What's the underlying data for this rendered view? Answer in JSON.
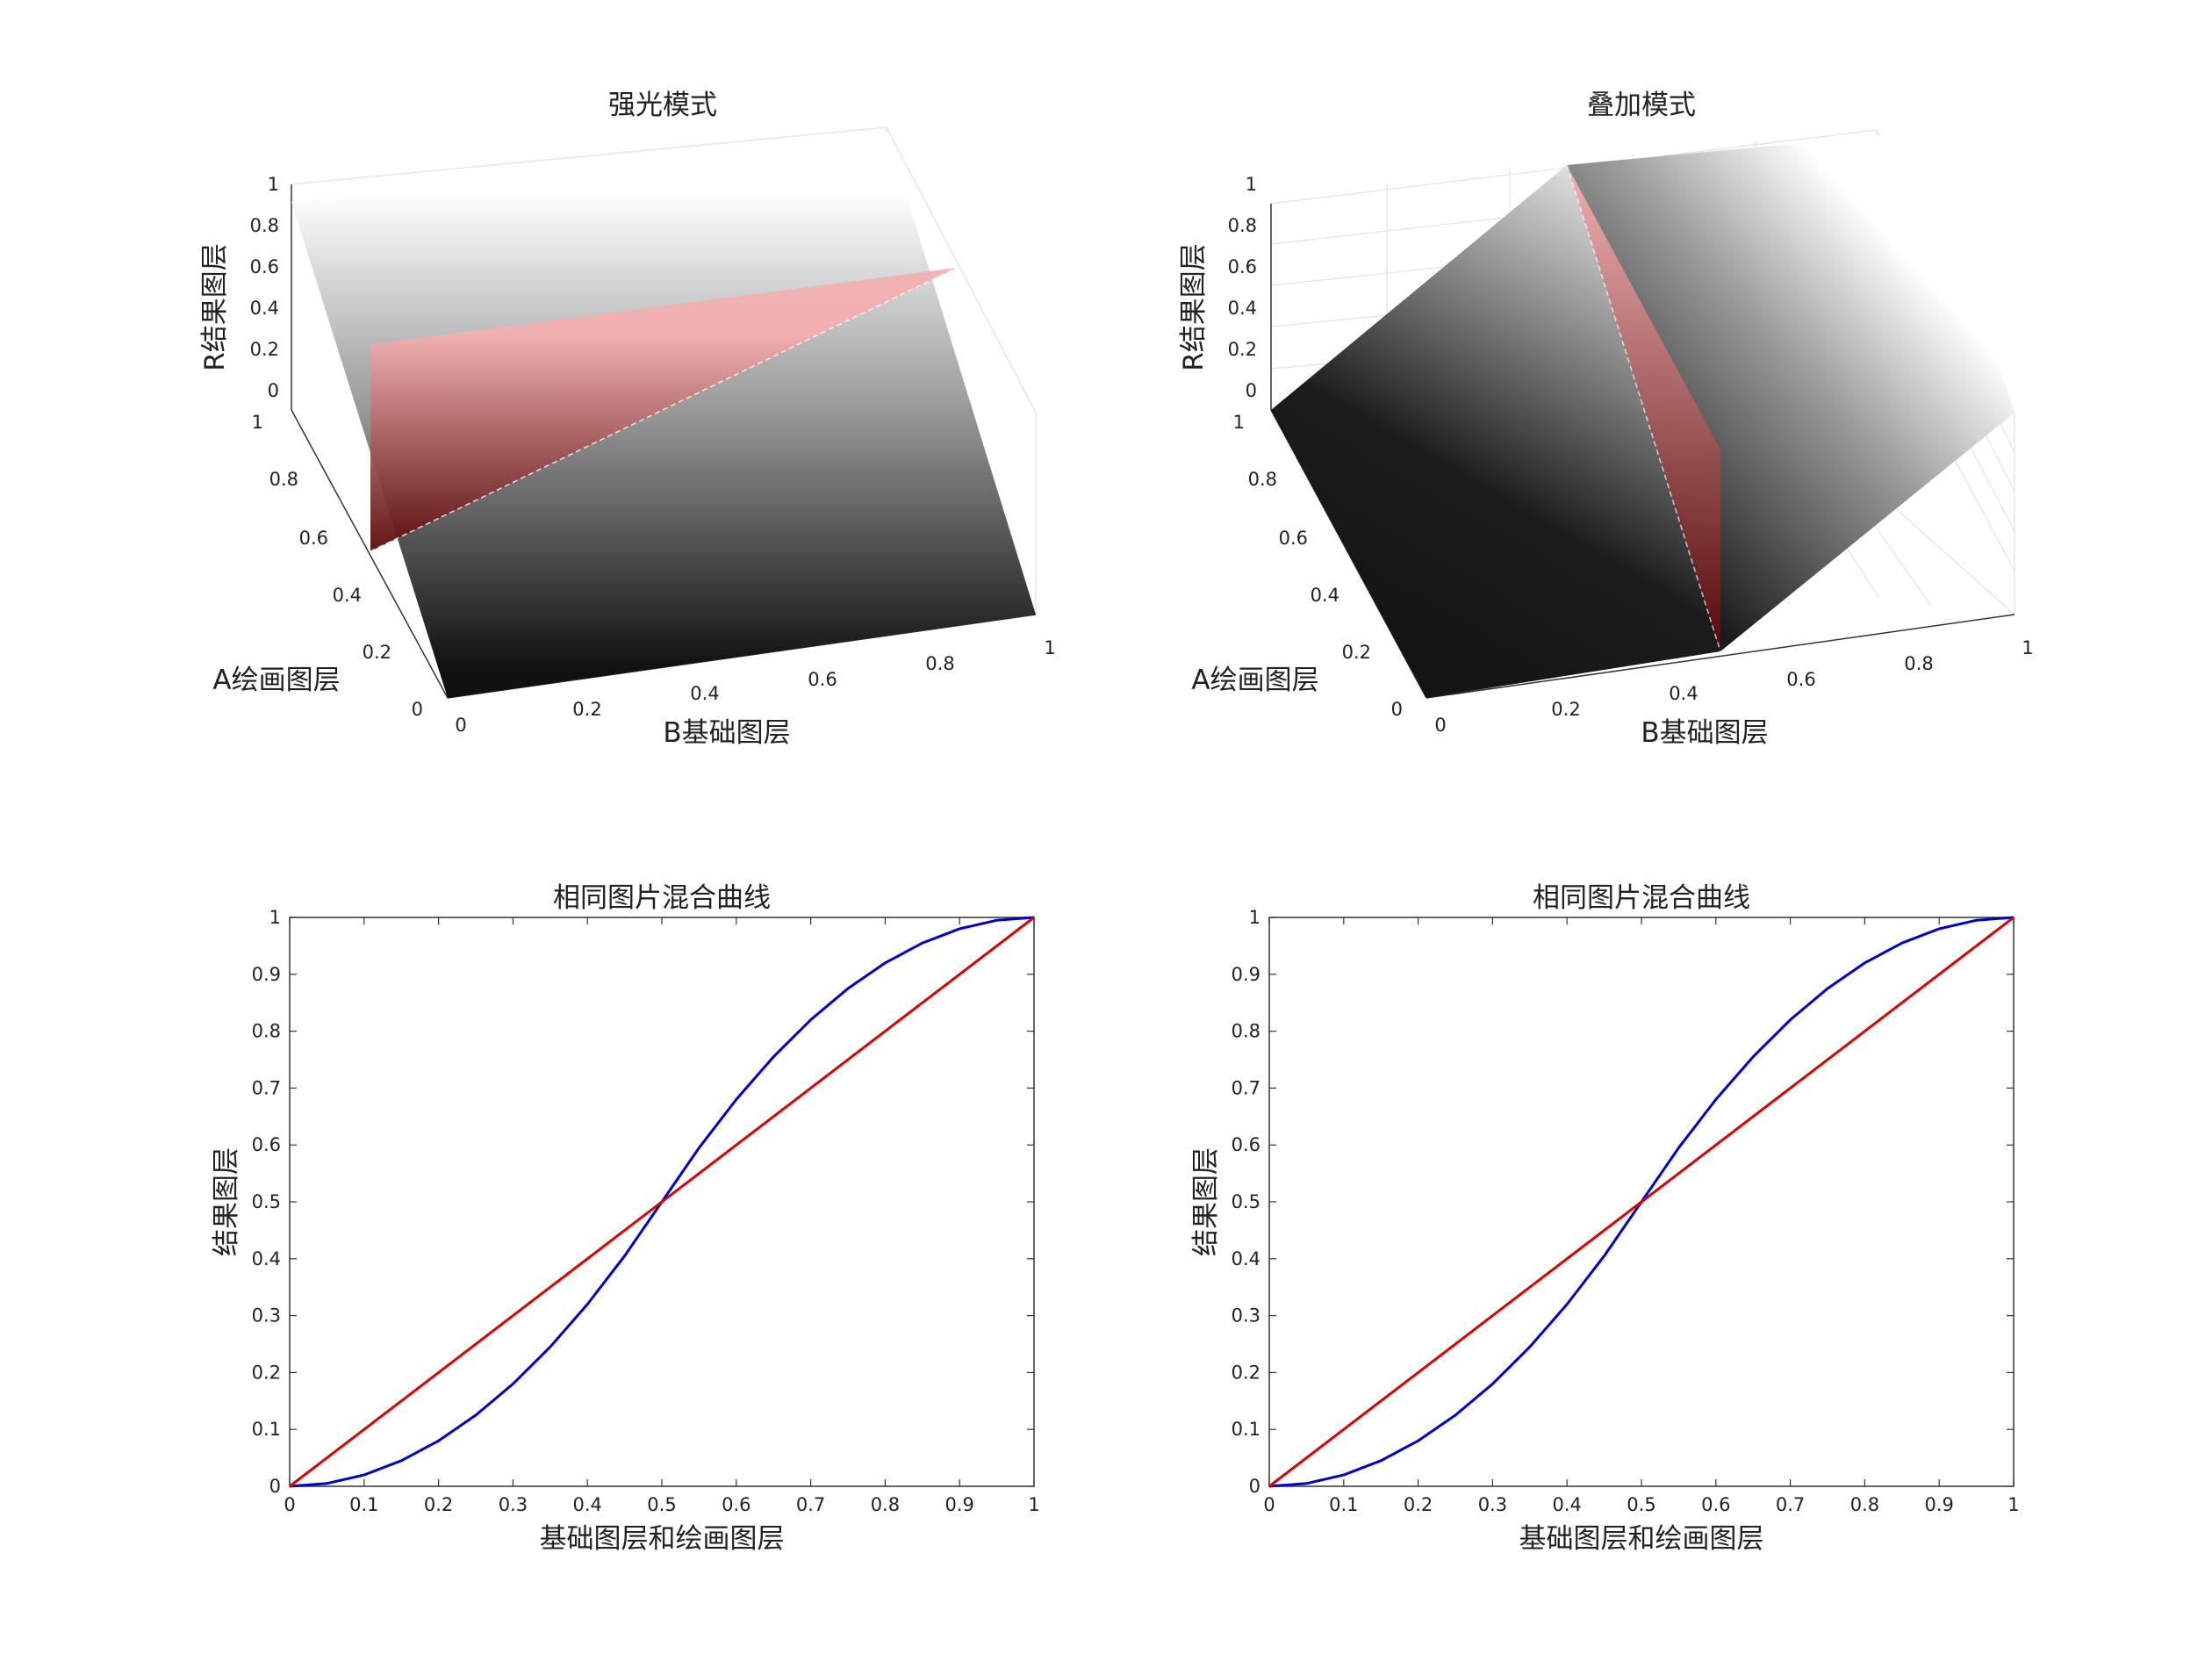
{
  "chart_data": [
    {
      "type": "surface",
      "title": "强光模式",
      "xlabel": "B基础图层",
      "ylabel": "A绘画图层",
      "zlabel": "R结果图层",
      "xlim": [
        0,
        1
      ],
      "ylim": [
        0,
        1
      ],
      "zlim": [
        0,
        1
      ],
      "x_ticks": [
        "0",
        "0.2",
        "0.4",
        "0.6",
        "0.8",
        "1"
      ],
      "y_ticks": [
        "0",
        "0.2",
        "0.4",
        "0.6",
        "0.8",
        "1"
      ],
      "z_ticks": [
        "0",
        "0.2",
        "0.4",
        "0.6",
        "0.8",
        "1"
      ],
      "surface_colormap": "gray",
      "highlight_plane": {
        "color": "#e08080",
        "description_value": "A = 0.5"
      },
      "grid": true
    },
    {
      "type": "surface",
      "title": "叠加模式",
      "xlabel": "B基础图层",
      "ylabel": "A绘画图层",
      "zlabel": "R结果图层",
      "xlim": [
        0,
        1
      ],
      "ylim": [
        0,
        1
      ],
      "zlim": [
        0,
        1
      ],
      "x_ticks": [
        "0",
        "0.2",
        "0.4",
        "0.6",
        "0.8",
        "1"
      ],
      "y_ticks": [
        "0",
        "0.2",
        "0.4",
        "0.6",
        "0.8",
        "1"
      ],
      "z_ticks": [
        "0",
        "0.2",
        "0.4",
        "0.6",
        "0.8",
        "1"
      ],
      "surface_colormap": "gray",
      "highlight_plane": {
        "color": "#e08080",
        "description_value": "B = 0.5"
      },
      "grid": true
    },
    {
      "type": "line",
      "title": "相同图片混合曲线",
      "xlabel": "基础图层和绘画图层",
      "ylabel": "结果图层",
      "xlim": [
        0,
        1
      ],
      "ylim": [
        0,
        1
      ],
      "x_ticks": [
        "0",
        "0.1",
        "0.2",
        "0.3",
        "0.4",
        "0.5",
        "0.6",
        "0.7",
        "0.8",
        "0.9",
        "1"
      ],
      "y_ticks": [
        "0",
        "0.1",
        "0.2",
        "0.3",
        "0.4",
        "0.5",
        "0.6",
        "0.7",
        "0.8",
        "0.9",
        "1"
      ],
      "series": [
        {
          "color": "#0000cc",
          "x": [
            0,
            0.05,
            0.1,
            0.15,
            0.2,
            0.25,
            0.3,
            0.35,
            0.4,
            0.45,
            0.5,
            0.55,
            0.6,
            0.65,
            0.7,
            0.75,
            0.8,
            0.85,
            0.9,
            0.95,
            1
          ],
          "y": [
            0,
            0.005,
            0.02,
            0.045,
            0.08,
            0.125,
            0.18,
            0.245,
            0.32,
            0.405,
            0.5,
            0.595,
            0.68,
            0.755,
            0.82,
            0.875,
            0.92,
            0.955,
            0.98,
            0.995,
            1
          ]
        },
        {
          "color": "#dd0000",
          "x": [
            0,
            1
          ],
          "y": [
            0,
            1
          ]
        }
      ]
    },
    {
      "type": "line",
      "title": "相同图片混合曲线",
      "xlabel": "基础图层和绘画图层",
      "ylabel": "结果图层",
      "xlim": [
        0,
        1
      ],
      "ylim": [
        0,
        1
      ],
      "x_ticks": [
        "0",
        "0.1",
        "0.2",
        "0.3",
        "0.4",
        "0.5",
        "0.6",
        "0.7",
        "0.8",
        "0.9",
        "1"
      ],
      "y_ticks": [
        "0",
        "0.1",
        "0.2",
        "0.3",
        "0.4",
        "0.5",
        "0.6",
        "0.7",
        "0.8",
        "0.9",
        "1"
      ],
      "series": [
        {
          "color": "#0000cc",
          "x": [
            0,
            0.05,
            0.1,
            0.15,
            0.2,
            0.25,
            0.3,
            0.35,
            0.4,
            0.45,
            0.5,
            0.55,
            0.6,
            0.65,
            0.7,
            0.75,
            0.8,
            0.85,
            0.9,
            0.95,
            1
          ],
          "y": [
            0,
            0.005,
            0.02,
            0.045,
            0.08,
            0.125,
            0.18,
            0.245,
            0.32,
            0.405,
            0.5,
            0.595,
            0.68,
            0.755,
            0.82,
            0.875,
            0.92,
            0.955,
            0.98,
            0.995,
            1
          ]
        },
        {
          "color": "#dd0000",
          "x": [
            0,
            1
          ],
          "y": [
            0,
            1
          ]
        }
      ]
    }
  ]
}
